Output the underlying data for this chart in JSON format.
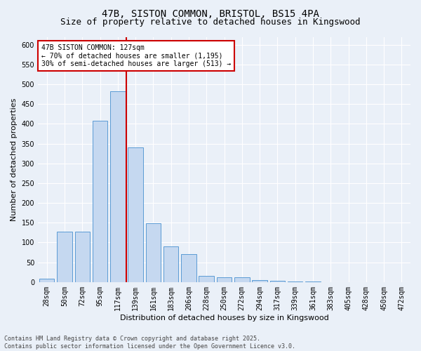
{
  "title_line1": "47B, SISTON COMMON, BRISTOL, BS15 4PA",
  "title_line2": "Size of property relative to detached houses in Kingswood",
  "xlabel": "Distribution of detached houses by size in Kingswood",
  "ylabel": "Number of detached properties",
  "bar_values": [
    8,
    128,
    128,
    408,
    483,
    340,
    148,
    91,
    70,
    15,
    12,
    13,
    5,
    3,
    1,
    1,
    0,
    0,
    0,
    0,
    0
  ],
  "categories": [
    "28sqm",
    "50sqm",
    "72sqm",
    "95sqm",
    "117sqm",
    "139sqm",
    "161sqm",
    "183sqm",
    "206sqm",
    "228sqm",
    "250sqm",
    "272sqm",
    "294sqm",
    "317sqm",
    "339sqm",
    "361sqm",
    "383sqm",
    "405sqm",
    "428sqm",
    "450sqm",
    "472sqm"
  ],
  "bar_color": "#c5d8f0",
  "bar_edge_color": "#5b9bd5",
  "vline_color": "#cc0000",
  "ylim": [
    0,
    620
  ],
  "yticks": [
    0,
    50,
    100,
    150,
    200,
    250,
    300,
    350,
    400,
    450,
    500,
    550,
    600
  ],
  "annotation_title": "47B SISTON COMMON: 127sqm",
  "annotation_line2": "← 70% of detached houses are smaller (1,195)",
  "annotation_line3": "30% of semi-detached houses are larger (513) →",
  "annotation_box_color": "#cc0000",
  "footer_line1": "Contains HM Land Registry data © Crown copyright and database right 2025.",
  "footer_line2": "Contains public sector information licensed under the Open Government Licence v3.0.",
  "bg_color": "#eaf0f8",
  "plot_bg_color": "#eaf0f8",
  "grid_color": "#ffffff",
  "title_fontsize": 10,
  "subtitle_fontsize": 9,
  "tick_fontsize": 7,
  "ylabel_fontsize": 8,
  "xlabel_fontsize": 8,
  "footer_fontsize": 6,
  "annot_fontsize": 7
}
